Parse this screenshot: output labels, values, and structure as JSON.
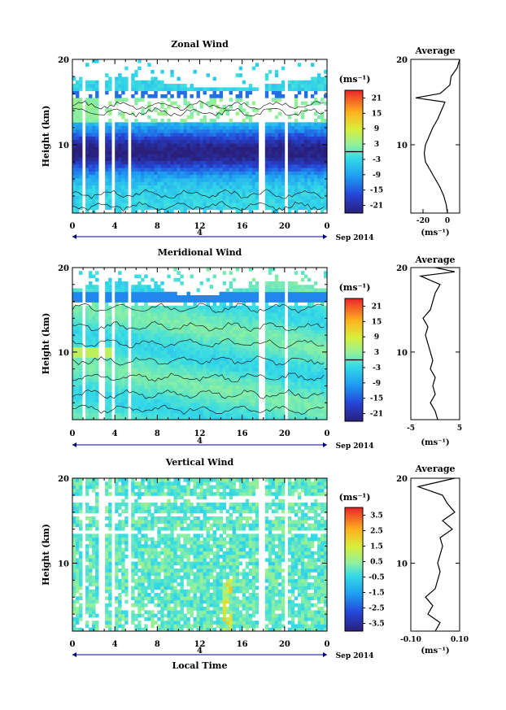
{
  "figure": {
    "x_axis_label": "Local Time",
    "date_label": "Sep 2014",
    "day_marker": "4",
    "avg_title": "Average",
    "colorbar_unit": "(ms⁻¹)",
    "avg_unit": "(ms⁻¹)",
    "y_label": "Height (km)"
  },
  "chart_data": [
    {
      "type": "heatmap",
      "title": "Zonal Wind",
      "ylabel": "Height (km)",
      "xlabel": "",
      "x_ticks": [
        "0",
        "4",
        "8",
        "12",
        "16",
        "20",
        "0"
      ],
      "x_range_hours": [
        0,
        24
      ],
      "y_ticks": [
        "20",
        "10"
      ],
      "ylim": [
        2,
        20
      ],
      "colorbar": {
        "unit": "(ms⁻¹)",
        "ticks": [
          "21",
          "15",
          "9",
          "3",
          "-3",
          "-9",
          "-15",
          "-21"
        ],
        "range": [
          -24,
          24
        ]
      },
      "average_profile": {
        "title": "Average",
        "x_ticks": [
          "-20",
          "0"
        ],
        "xlim": [
          -30,
          10
        ],
        "xlabel": "(ms⁻¹)",
        "heights": [
          2,
          3,
          4,
          5,
          6,
          7,
          8,
          9,
          10,
          11,
          12,
          13,
          14,
          15,
          15.5,
          16,
          16.5,
          17,
          18,
          19,
          20
        ],
        "values": [
          0,
          -1,
          -3,
          -6,
          -10,
          -14,
          -18,
          -19,
          -18,
          -15,
          -12,
          -8,
          -5,
          -2,
          -26,
          -6,
          -2,
          2,
          3,
          8,
          10
        ]
      }
    },
    {
      "type": "heatmap",
      "title": "Meridional Wind",
      "ylabel": "Height (km)",
      "xlabel": "",
      "x_ticks": [
        "0",
        "4",
        "8",
        "12",
        "16",
        "20",
        "0"
      ],
      "x_range_hours": [
        0,
        24
      ],
      "y_ticks": [
        "20",
        "10"
      ],
      "ylim": [
        2,
        20
      ],
      "colorbar": {
        "unit": "(ms⁻¹)",
        "ticks": [
          "21",
          "15",
          "9",
          "3",
          "-3",
          "-9",
          "-15",
          "-21"
        ],
        "range": [
          -24,
          24
        ]
      },
      "average_profile": {
        "title": "Average",
        "x_ticks": [
          "-5",
          "5"
        ],
        "xlim": [
          -5,
          5
        ],
        "xlabel": "(ms⁻¹)",
        "heights": [
          2,
          3,
          4,
          5,
          6,
          7,
          8,
          9,
          10,
          11,
          12,
          13,
          14,
          15,
          16,
          17,
          18,
          19,
          19.5,
          20
        ],
        "values": [
          0.5,
          0,
          -1,
          0,
          -0.5,
          0,
          -1,
          -0.5,
          -1,
          -1.5,
          -2,
          -1.5,
          -2.5,
          -1,
          -0.5,
          0,
          1,
          -3,
          4,
          0
        ]
      }
    },
    {
      "type": "heatmap",
      "title": "Vertical Wind",
      "ylabel": "Height (km)",
      "xlabel": "Local Time",
      "x_ticks": [
        "0",
        "4",
        "8",
        "12",
        "16",
        "20",
        "0"
      ],
      "x_range_hours": [
        0,
        24
      ],
      "y_ticks": [
        "20",
        "10"
      ],
      "ylim": [
        2,
        20
      ],
      "colorbar": {
        "unit": "(ms⁻¹)",
        "ticks": [
          "3.5",
          "2.5",
          "1.5",
          "0.5",
          "-0.5",
          "-1.5",
          "-2.5",
          "-3.5"
        ],
        "range": [
          -4,
          4
        ]
      },
      "average_profile": {
        "title": "Average",
        "x_ticks": [
          "-0.10",
          "0.10"
        ],
        "xlim": [
          -0.1,
          0.1
        ],
        "xlabel": "(ms⁻¹)",
        "heights": [
          2,
          3,
          4,
          5,
          6,
          7,
          8,
          9,
          10,
          11,
          12,
          13,
          14,
          15,
          16,
          17,
          18,
          19,
          20
        ],
        "values": [
          0,
          0.02,
          -0.03,
          -0.01,
          -0.04,
          0.0,
          0.01,
          0.02,
          0.01,
          0.02,
          0.03,
          0.02,
          0.07,
          0.03,
          0.08,
          0.05,
          0.03,
          -0.07,
          0.08
        ]
      }
    }
  ]
}
